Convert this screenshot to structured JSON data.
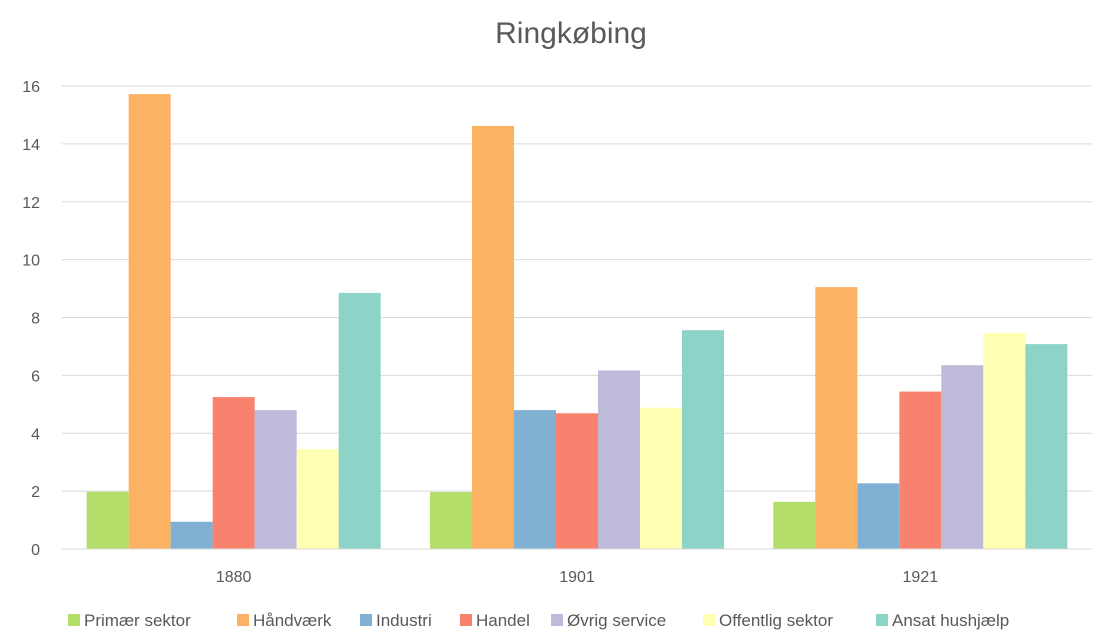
{
  "chart_data": {
    "type": "bar",
    "title": "Ringkøbing",
    "xlabel": "",
    "ylabel": "",
    "categories": [
      "1880",
      "1901",
      "1921"
    ],
    "ylim": [
      0,
      16
    ],
    "yticks": [
      0,
      2,
      4,
      6,
      8,
      10,
      12,
      14,
      16
    ],
    "grid": true,
    "legend_position": "bottom",
    "series": [
      {
        "name": "Primær sektor",
        "color": "#b3de69",
        "values": [
          1.98,
          1.97,
          1.63
        ]
      },
      {
        "name": "Håndværk",
        "color": "#fbb262",
        "values": [
          15.72,
          14.62,
          9.05
        ]
      },
      {
        "name": "Industri",
        "color": "#80b1d3",
        "values": [
          0.94,
          4.8,
          2.27
        ]
      },
      {
        "name": "Handel",
        "color": "#f9826f",
        "values": [
          5.25,
          4.69,
          5.44
        ]
      },
      {
        "name": "Øvrig service",
        "color": "#bebada",
        "values": [
          4.8,
          6.17,
          6.35
        ]
      },
      {
        "name": "Offentlig sektor",
        "color": "#ffffb3",
        "values": [
          3.45,
          4.88,
          7.47
        ]
      },
      {
        "name": "Ansat hushjælp",
        "color": "#8dd3c7",
        "values": [
          8.85,
          7.56,
          7.08
        ]
      }
    ]
  }
}
